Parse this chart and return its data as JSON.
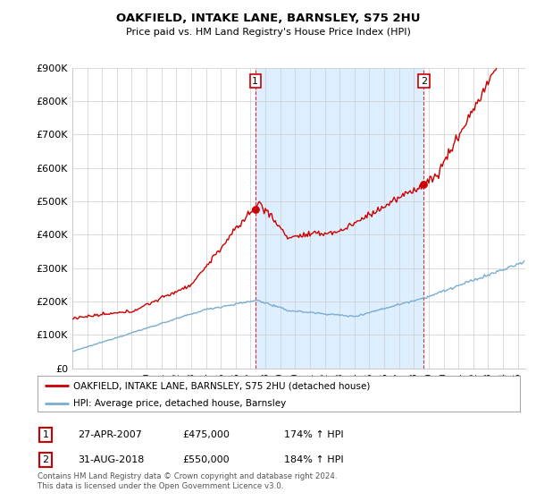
{
  "title": "OAKFIELD, INTAKE LANE, BARNSLEY, S75 2HU",
  "subtitle": "Price paid vs. HM Land Registry's House Price Index (HPI)",
  "red_label": "OAKFIELD, INTAKE LANE, BARNSLEY, S75 2HU (detached house)",
  "blue_label": "HPI: Average price, detached house, Barnsley",
  "point1_date": "27-APR-2007",
  "point1_price": "£475,000",
  "point1_hpi": "174% ↑ HPI",
  "point1_x": 2007.32,
  "point1_y": 475000,
  "point2_date": "31-AUG-2018",
  "point2_price": "£550,000",
  "point2_hpi": "184% ↑ HPI",
  "point2_x": 2018.67,
  "point2_y": 550000,
  "ylim": [
    0,
    900000
  ],
  "xlim_start": 1995.0,
  "xlim_end": 2025.5,
  "footer": "Contains HM Land Registry data © Crown copyright and database right 2024.\nThis data is licensed under the Open Government Licence v3.0.",
  "red_color": "#cc0000",
  "blue_color": "#7aadcf",
  "shade_color": "#ddeeff",
  "bg_color": "#ffffff",
  "grid_color": "#cccccc"
}
